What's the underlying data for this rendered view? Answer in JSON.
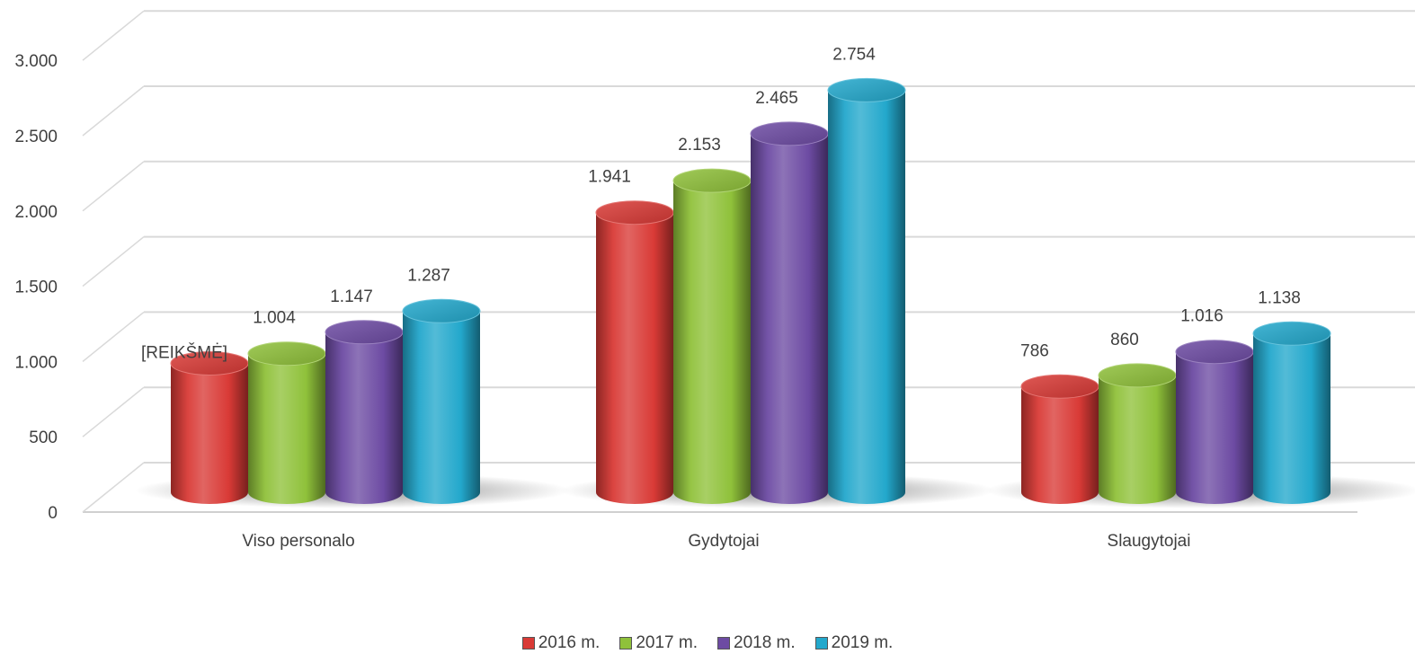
{
  "chart_data": {
    "type": "bar",
    "style": "3d-cylinder",
    "categories": [
      "Viso personalo",
      "Gydytojai",
      "Slaugytojai"
    ],
    "series": [
      {
        "name": "2016 m.",
        "values": [
          940,
          1941,
          786
        ],
        "labels": [
          "[REIKŠMĖ]",
          "1.941",
          "786"
        ],
        "color": "#d93a36"
      },
      {
        "name": "2017 m.",
        "values": [
          1004,
          2153,
          860
        ],
        "labels": [
          "1.004",
          "2.153",
          "860"
        ],
        "color": "#8fc13a"
      },
      {
        "name": "2018 m.",
        "values": [
          1147,
          2465,
          1016
        ],
        "labels": [
          "1.147",
          "2.465",
          "1.016"
        ],
        "color": "#6d4ba3"
      },
      {
        "name": "2019 m.",
        "values": [
          1287,
          2754,
          1138
        ],
        "labels": [
          "1.287",
          "2.754",
          "1.138"
        ],
        "color": "#23a8cc"
      }
    ],
    "yticks": [
      0,
      500,
      1000,
      1500,
      2000,
      2500,
      3000
    ],
    "ytick_labels": [
      "0",
      "500",
      "1.000",
      "1.500",
      "2.000",
      "2.500",
      "3.000"
    ],
    "ylim": [
      0,
      3000
    ],
    "grid": true,
    "legend": "bottom"
  }
}
